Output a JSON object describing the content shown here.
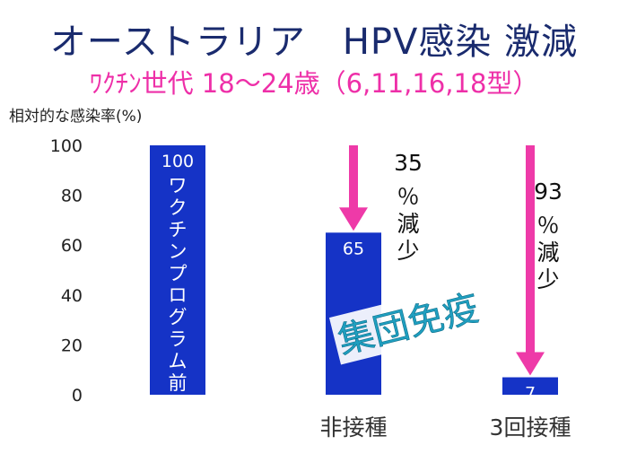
{
  "chart_data": {
    "type": "bar",
    "title": "オーストラリア　HPV感染 激減",
    "subtitle": "ﾜｸﾁﾝ世代 18～24歳（6,11,16,18型）",
    "ylabel": "相対的な感染率(%)",
    "ylim": [
      0,
      100
    ],
    "yticks": [
      0,
      20,
      40,
      60,
      80,
      100
    ],
    "categories": [
      "",
      "非接種",
      "3回接種"
    ],
    "values": [
      100,
      65,
      7
    ],
    "value_labels": [
      "100",
      "65",
      "7"
    ],
    "bar_annotations": [
      "ワクチンプログラム前",
      "",
      ""
    ],
    "arrows": [
      {
        "from": 100,
        "to": 65,
        "label": "35％減少",
        "color": "#ee3aa8"
      },
      {
        "from": 100,
        "to": 7,
        "label": "93％減少",
        "color": "#ee3aa8"
      }
    ],
    "stamp": "集団免疫",
    "grid": false,
    "bar_color": "#1533c6"
  }
}
